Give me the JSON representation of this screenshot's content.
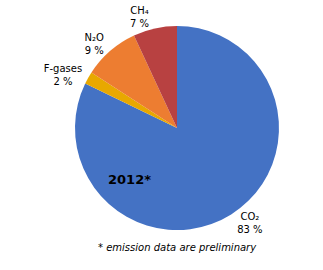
{
  "chart_data": {
    "type": "pie",
    "categories": [
      "CO₂",
      "F-gases",
      "N₂O",
      "CH₄"
    ],
    "values": [
      83,
      2,
      9,
      7
    ],
    "value_labels": [
      "83 %",
      "2 %",
      "9 %",
      "7 %"
    ],
    "data_labels": true,
    "colors": [
      "#4472C4",
      "#E8A800",
      "#ED7D31",
      "#B84141"
    ],
    "annotations": [
      "2012*"
    ],
    "footnote": "* emission data are preliminary"
  }
}
